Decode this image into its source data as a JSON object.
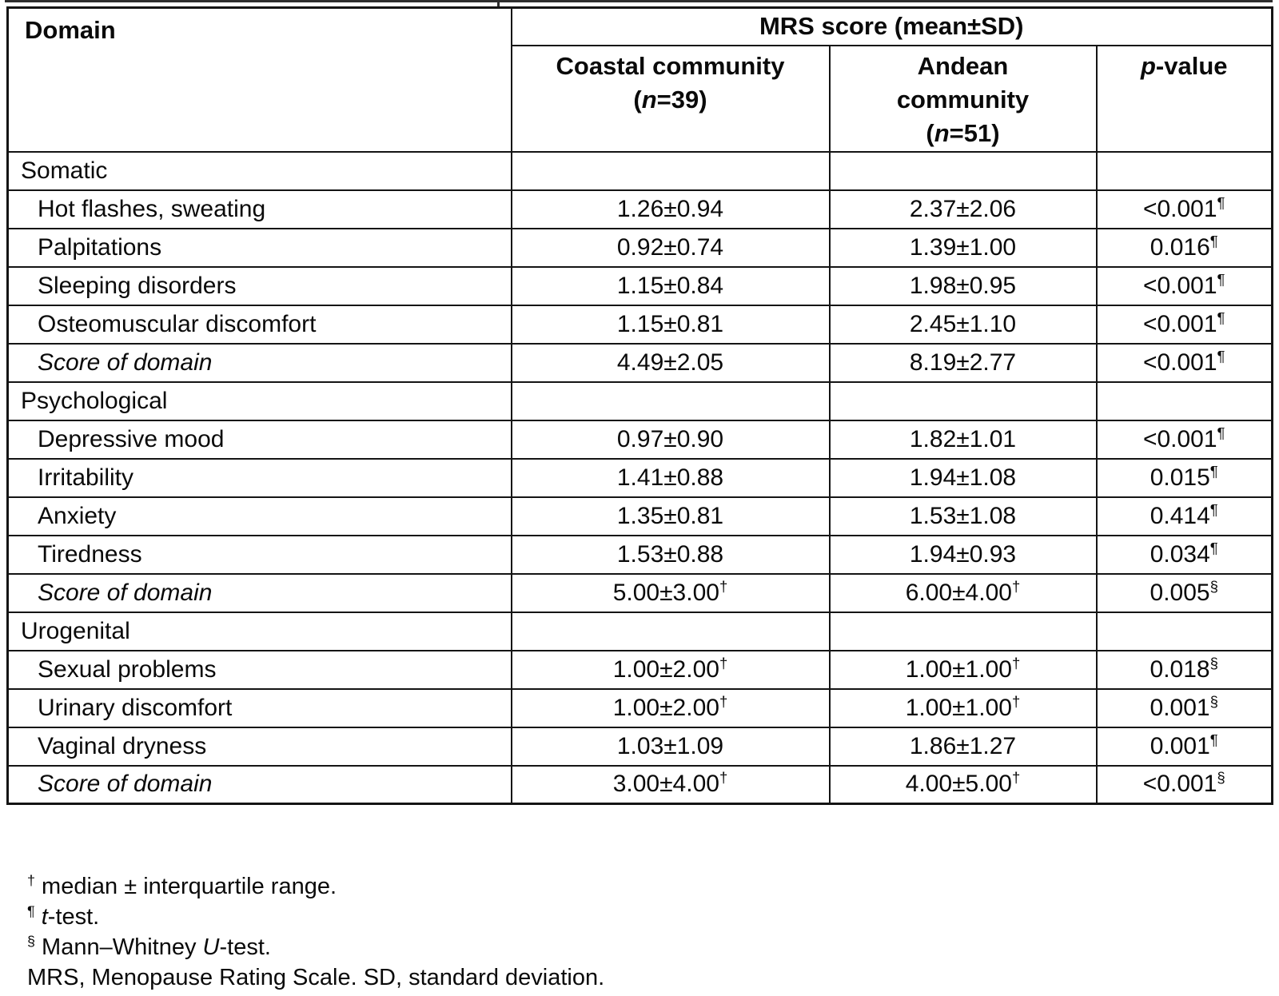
{
  "table": {
    "header": {
      "domain": "Domain",
      "mrs": "MRS score (mean±SD)",
      "coastal": {
        "line1": "Coastal community",
        "open": "(",
        "n": "n",
        "rest": "=39)"
      },
      "andean": {
        "line1": "Andean",
        "line2": "community",
        "open": "(",
        "n": "n",
        "rest": "=51)"
      },
      "p": {
        "italic": "p",
        "rest": "-value"
      }
    },
    "rows": [
      {
        "type": "section",
        "label": "Somatic",
        "cells": [
          {
            "t": "",
            "s": ""
          },
          {
            "t": "",
            "s": ""
          },
          {
            "t": "",
            "s": ""
          }
        ]
      },
      {
        "type": "item",
        "label": "Hot flashes, sweating",
        "cells": [
          {
            "t": "1.26±0.94",
            "s": ""
          },
          {
            "t": "2.37±2.06",
            "s": ""
          },
          {
            "t": "<0.001",
            "s": "¶"
          }
        ]
      },
      {
        "type": "item",
        "label": "Palpitations",
        "cells": [
          {
            "t": "0.92±0.74",
            "s": ""
          },
          {
            "t": "1.39±1.00",
            "s": ""
          },
          {
            "t": "0.016",
            "s": "¶"
          }
        ]
      },
      {
        "type": "item",
        "label": "Sleeping disorders",
        "cells": [
          {
            "t": "1.15±0.84",
            "s": ""
          },
          {
            "t": "1.98±0.95",
            "s": ""
          },
          {
            "t": "<0.001",
            "s": "¶"
          }
        ]
      },
      {
        "type": "item",
        "label": "Osteomuscular discomfort",
        "cells": [
          {
            "t": "1.15±0.81",
            "s": ""
          },
          {
            "t": "2.45±1.10",
            "s": ""
          },
          {
            "t": "<0.001",
            "s": "¶"
          }
        ]
      },
      {
        "type": "score",
        "label": "Score of domain",
        "cells": [
          {
            "t": "4.49±2.05",
            "s": ""
          },
          {
            "t": "8.19±2.77",
            "s": ""
          },
          {
            "t": "<0.001",
            "s": "¶"
          }
        ]
      },
      {
        "type": "section",
        "label": "Psychological",
        "cells": [
          {
            "t": "",
            "s": ""
          },
          {
            "t": "",
            "s": ""
          },
          {
            "t": "",
            "s": ""
          }
        ]
      },
      {
        "type": "item",
        "label": "Depressive mood",
        "cells": [
          {
            "t": "0.97±0.90",
            "s": ""
          },
          {
            "t": "1.82±1.01",
            "s": ""
          },
          {
            "t": "<0.001",
            "s": "¶"
          }
        ]
      },
      {
        "type": "item",
        "label": "Irritability",
        "cells": [
          {
            "t": "1.41±0.88",
            "s": ""
          },
          {
            "t": "1.94±1.08",
            "s": ""
          },
          {
            "t": "0.015",
            "s": "¶"
          }
        ]
      },
      {
        "type": "item",
        "label": "Anxiety",
        "cells": [
          {
            "t": "1.35±0.81",
            "s": ""
          },
          {
            "t": "1.53±1.08",
            "s": ""
          },
          {
            "t": "0.414",
            "s": "¶"
          }
        ]
      },
      {
        "type": "item",
        "label": "Tiredness",
        "cells": [
          {
            "t": "1.53±0.88",
            "s": ""
          },
          {
            "t": "1.94±0.93",
            "s": ""
          },
          {
            "t": "0.034",
            "s": "¶"
          }
        ]
      },
      {
        "type": "score",
        "label": "Score of domain",
        "cells": [
          {
            "t": "5.00±3.00",
            "s": "†"
          },
          {
            "t": "6.00±4.00",
            "s": "†"
          },
          {
            "t": "0.005",
            "s": "§"
          }
        ]
      },
      {
        "type": "section",
        "label": "Urogenital",
        "cells": [
          {
            "t": "",
            "s": ""
          },
          {
            "t": "",
            "s": ""
          },
          {
            "t": "",
            "s": ""
          }
        ]
      },
      {
        "type": "item",
        "label": "Sexual problems",
        "cells": [
          {
            "t": "1.00±2.00",
            "s": "†"
          },
          {
            "t": "1.00±1.00",
            "s": "†"
          },
          {
            "t": "0.018",
            "s": "§"
          }
        ]
      },
      {
        "type": "item",
        "label": "Urinary discomfort",
        "cells": [
          {
            "t": "1.00±2.00",
            "s": "†"
          },
          {
            "t": "1.00±1.00",
            "s": "†"
          },
          {
            "t": "0.001",
            "s": "§"
          }
        ]
      },
      {
        "type": "item",
        "label": "Vaginal dryness",
        "cells": [
          {
            "t": "1.03±1.09",
            "s": ""
          },
          {
            "t": "1.86±1.27",
            "s": ""
          },
          {
            "t": "0.001",
            "s": "¶"
          }
        ]
      },
      {
        "type": "score",
        "label": "Score of domain",
        "cells": [
          {
            "t": "3.00±4.00",
            "s": "†"
          },
          {
            "t": "4.00±5.00",
            "s": "†"
          },
          {
            "t": "<0.001",
            "s": "§"
          }
        ]
      }
    ]
  },
  "footnotes": [
    {
      "sup": "†",
      "pre": " median ± interquartile range.",
      "italic": "",
      "post": ""
    },
    {
      "sup": "¶",
      "pre": " ",
      "italic": "t",
      "post": "-test."
    },
    {
      "sup": "§",
      "pre": " Mann–Whitney ",
      "italic": "U",
      "post": "-test."
    },
    {
      "sup": "",
      "pre": "MRS, Menopause Rating Scale. SD, standard deviation.",
      "italic": "",
      "post": ""
    }
  ],
  "colors": {
    "border": "#141414",
    "text": "#0a0a0a",
    "background": "#ffffff"
  }
}
